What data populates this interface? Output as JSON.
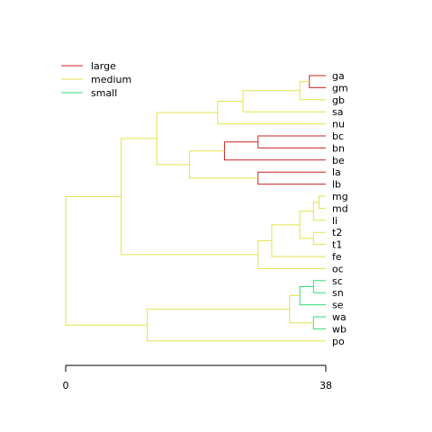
{
  "legend": {
    "position": "top-left",
    "items": [
      {
        "label": "large",
        "color": "#cc2222"
      },
      {
        "label": "medium",
        "color": "#e3e34a"
      },
      {
        "label": "small",
        "color": "#33dd77"
      }
    ]
  },
  "axis": {
    "min": 0,
    "max": 38,
    "tick_labels": [
      "0",
      "38"
    ]
  },
  "chart_data": {
    "type": "dendrogram",
    "orientation": "horizontal",
    "xlim": [
      0,
      38
    ],
    "leaves": [
      "ga",
      "gm",
      "gb",
      "sa",
      "nu",
      "bc",
      "bn",
      "be",
      "la",
      "lb",
      "mg",
      "md",
      "li",
      "t2",
      "t1",
      "fe",
      "oc",
      "sc",
      "sn",
      "se",
      "wa",
      "wb",
      "po"
    ],
    "merges": [
      {
        "id": "c1",
        "children": [
          "ga",
          "gm"
        ],
        "height": 35.6,
        "group": "large"
      },
      {
        "id": "c2",
        "children": [
          "c1",
          "gb"
        ],
        "height": 34.2,
        "group": "medium"
      },
      {
        "id": "c3",
        "children": [
          "c2",
          "sa"
        ],
        "height": 25.9,
        "group": "medium"
      },
      {
        "id": "c4",
        "children": [
          "c3",
          "nu"
        ],
        "height": 22.2,
        "group": "medium"
      },
      {
        "id": "c5",
        "children": [
          "bc",
          "bn"
        ],
        "height": 28.1,
        "group": "large"
      },
      {
        "id": "c6",
        "children": [
          "c5",
          "be"
        ],
        "height": 23.2,
        "group": "large"
      },
      {
        "id": "c7",
        "children": [
          "la",
          "lb"
        ],
        "height": 28.1,
        "group": "large"
      },
      {
        "id": "c8",
        "children": [
          "c6",
          "c7"
        ],
        "height": 18.1,
        "group": "medium"
      },
      {
        "id": "c9",
        "children": [
          "c4",
          "c8"
        ],
        "height": 13.3,
        "group": "medium"
      },
      {
        "id": "c10",
        "children": [
          "mg",
          "md"
        ],
        "height": 37.0,
        "group": "medium"
      },
      {
        "id": "c11",
        "children": [
          "c10",
          "li"
        ],
        "height": 36.2,
        "group": "medium"
      },
      {
        "id": "c12",
        "children": [
          "t2",
          "t1"
        ],
        "height": 36.2,
        "group": "medium"
      },
      {
        "id": "c13",
        "children": [
          "c11",
          "c12"
        ],
        "height": 34.2,
        "group": "medium"
      },
      {
        "id": "c14",
        "children": [
          "c13",
          "fe"
        ],
        "height": 30.1,
        "group": "medium"
      },
      {
        "id": "c15",
        "children": [
          "c14",
          "oc"
        ],
        "height": 28.1,
        "group": "medium"
      },
      {
        "id": "c16",
        "children": [
          "c9",
          "c15"
        ],
        "height": 8.1,
        "group": "medium"
      },
      {
        "id": "c17",
        "children": [
          "sc",
          "sn"
        ],
        "height": 36.2,
        "group": "small"
      },
      {
        "id": "c18",
        "children": [
          "c17",
          "se"
        ],
        "height": 34.2,
        "group": "small"
      },
      {
        "id": "c19",
        "children": [
          "wa",
          "wb"
        ],
        "height": 36.2,
        "group": "small"
      },
      {
        "id": "c20",
        "children": [
          "c18",
          "c19"
        ],
        "height": 32.7,
        "group": "medium"
      },
      {
        "id": "c21",
        "children": [
          "c20",
          "po"
        ],
        "height": 11.9,
        "group": "medium"
      },
      {
        "id": "c22",
        "children": [
          "c16",
          "c21"
        ],
        "height": 0,
        "group": "medium"
      }
    ]
  }
}
